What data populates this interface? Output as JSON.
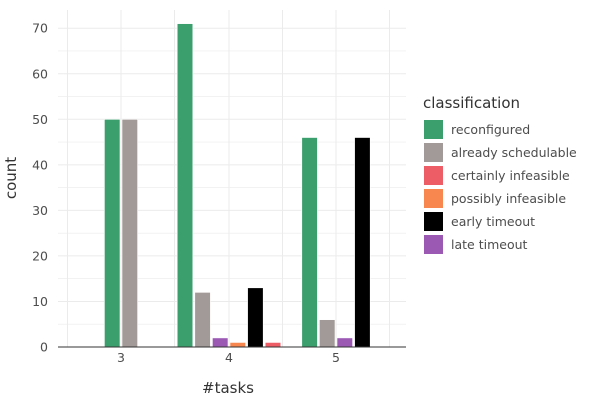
{
  "chart_data": {
    "type": "bar",
    "title": "",
    "xlabel": "#tasks",
    "ylabel": "count",
    "ylim": [
      0,
      74
    ],
    "y_ticks": [
      0,
      10,
      20,
      30,
      40,
      50,
      60,
      70
    ],
    "grid": true,
    "categories": [
      "3",
      "4",
      "5"
    ],
    "legend": {
      "title": "classification",
      "placement": "right"
    },
    "series": [
      {
        "name": "reconfigured",
        "color": "#3a9f6d",
        "values": [
          50,
          71,
          46
        ]
      },
      {
        "name": "already schedulable",
        "color": "#a29a98",
        "values": [
          50,
          12,
          6
        ]
      },
      {
        "name": "certainly infeasible",
        "color": "#ec5d66",
        "values": [
          0,
          1,
          0
        ]
      },
      {
        "name": "possibly infeasible",
        "color": "#f7864f",
        "values": [
          0,
          1,
          0
        ]
      },
      {
        "name": "early timeout",
        "color": "#000000",
        "values": [
          0,
          13,
          46
        ]
      },
      {
        "name": "late timeout",
        "color": "#9c59b4",
        "values": [
          0,
          2,
          2
        ]
      }
    ],
    "draw_order": [
      0,
      1,
      5,
      3,
      4,
      2
    ]
  }
}
